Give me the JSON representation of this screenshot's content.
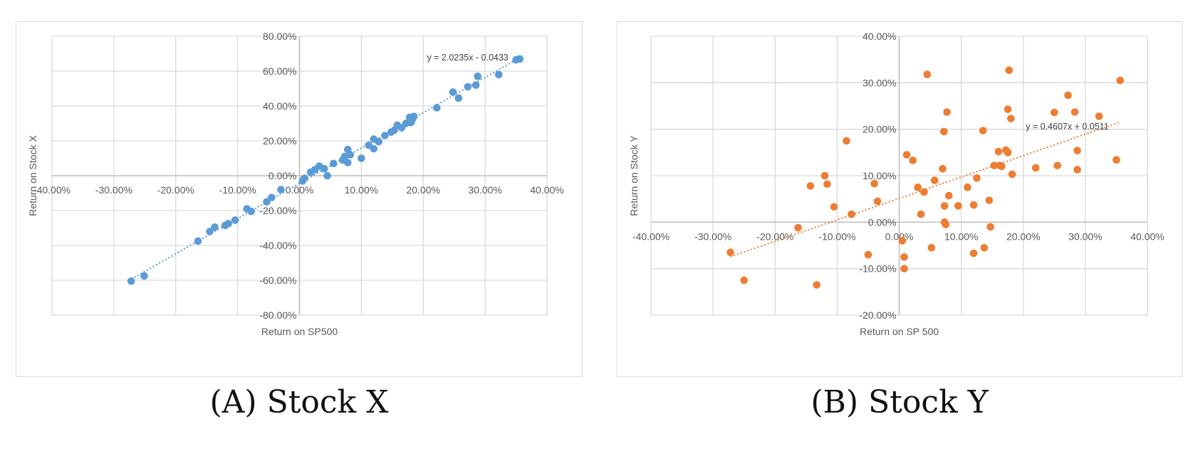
{
  "captions": {
    "a": "(A) Stock X",
    "b": "(B) Stock Y"
  },
  "chart_data": [
    {
      "type": "scatter",
      "color": "#5b9bd5",
      "xlabel": "Return on SP500",
      "ylabel": "Return on Stock X",
      "xlim": [
        -0.4,
        0.4
      ],
      "ylim": [
        -0.8,
        0.8
      ],
      "x_ticks": [
        -0.4,
        -0.3,
        -0.2,
        -0.1,
        0.0,
        0.1,
        0.2,
        0.3,
        0.4
      ],
      "y_ticks": [
        -0.8,
        -0.6,
        -0.4,
        -0.2,
        0.0,
        0.2,
        0.4,
        0.6,
        0.8
      ],
      "x_tick_labels": [
        "-40.00%",
        "-30.00%",
        "-20.00%",
        "-10.00%",
        "0.00%",
        "10.00%",
        "20.00%",
        "30.00%",
        "40.00%"
      ],
      "y_tick_labels": [
        "-80.00%",
        "-60.00%",
        "-40.00%",
        "-20.00%",
        "0.00%",
        "20.00%",
        "40.00%",
        "60.00%",
        "80.00%"
      ],
      "grid": true,
      "trendline": {
        "slope": 2.0235,
        "intercept": -0.0433,
        "x_range": [
          -0.272,
          0.356
        ],
        "equation": "y = 2.0235x - 0.0433"
      },
      "points": [
        [
          -0.272,
          -0.605
        ],
        [
          -0.251,
          -0.575
        ],
        [
          -0.164,
          -0.375
        ],
        [
          -0.145,
          -0.32
        ],
        [
          -0.137,
          -0.295
        ],
        [
          -0.12,
          -0.285
        ],
        [
          -0.115,
          -0.275
        ],
        [
          -0.104,
          -0.255
        ],
        [
          -0.085,
          -0.19
        ],
        [
          -0.078,
          -0.205
        ],
        [
          -0.053,
          -0.15
        ],
        [
          -0.045,
          -0.125
        ],
        [
          -0.03,
          -0.08
        ],
        [
          0.005,
          -0.03
        ],
        [
          0.008,
          -0.015
        ],
        [
          0.018,
          0.02
        ],
        [
          0.025,
          0.035
        ],
        [
          0.032,
          0.055
        ],
        [
          0.04,
          0.04
        ],
        [
          0.045,
          0.0
        ],
        [
          0.055,
          0.07
        ],
        [
          0.07,
          0.09
        ],
        [
          0.073,
          0.11
        ],
        [
          0.078,
          0.075
        ],
        [
          0.078,
          0.15
        ],
        [
          0.082,
          0.12
        ],
        [
          0.1,
          0.1
        ],
        [
          0.112,
          0.175
        ],
        [
          0.12,
          0.21
        ],
        [
          0.12,
          0.155
        ],
        [
          0.128,
          0.195
        ],
        [
          0.138,
          0.23
        ],
        [
          0.148,
          0.25
        ],
        [
          0.153,
          0.26
        ],
        [
          0.158,
          0.29
        ],
        [
          0.165,
          0.275
        ],
        [
          0.172,
          0.3
        ],
        [
          0.178,
          0.335
        ],
        [
          0.18,
          0.305
        ],
        [
          0.182,
          0.32
        ],
        [
          0.185,
          0.34
        ],
        [
          0.222,
          0.39
        ],
        [
          0.248,
          0.48
        ],
        [
          0.257,
          0.445
        ],
        [
          0.272,
          0.51
        ],
        [
          0.285,
          0.52
        ],
        [
          0.288,
          0.57
        ],
        [
          0.322,
          0.58
        ],
        [
          0.35,
          0.665
        ],
        [
          0.356,
          0.67
        ]
      ]
    },
    {
      "type": "scatter",
      "color": "#ed7d31",
      "xlabel": "Return on SP 500",
      "ylabel": "Return on Stock Y",
      "xlim": [
        -0.4,
        0.4
      ],
      "ylim": [
        -0.2,
        0.4
      ],
      "x_ticks": [
        -0.4,
        -0.3,
        -0.2,
        -0.1,
        0.0,
        0.1,
        0.2,
        0.3,
        0.4
      ],
      "y_ticks": [
        -0.2,
        -0.1,
        0.0,
        0.1,
        0.2,
        0.3,
        0.4
      ],
      "x_tick_labels": [
        "-40.00%",
        "-30.00%",
        "-20.00%",
        "-10.00%",
        "0.00%",
        "10.00%",
        "20.00%",
        "30.00%",
        "40.00%"
      ],
      "y_tick_labels": [
        "-20.00%",
        "-10.00%",
        "0.00%",
        "10.00%",
        "20.00%",
        "30.00%",
        "40.00%"
      ],
      "grid": true,
      "trendline": {
        "slope": 0.4607,
        "intercept": 0.0511,
        "x_range": [
          -0.272,
          0.356
        ],
        "equation": "y = 0.4607x + 0.0511"
      },
      "points": [
        [
          -0.272,
          -0.065
        ],
        [
          -0.25,
          -0.125
        ],
        [
          -0.163,
          -0.012
        ],
        [
          -0.143,
          0.078
        ],
        [
          -0.133,
          -0.135
        ],
        [
          -0.12,
          0.1
        ],
        [
          -0.116,
          0.082
        ],
        [
          -0.105,
          0.033
        ],
        [
          -0.085,
          0.175
        ],
        [
          -0.077,
          0.017
        ],
        [
          -0.05,
          -0.07
        ],
        [
          -0.04,
          0.083
        ],
        [
          -0.035,
          0.045
        ],
        [
          0.005,
          -0.04
        ],
        [
          0.008,
          -0.1
        ],
        [
          0.008,
          -0.075
        ],
        [
          0.012,
          0.145
        ],
        [
          0.022,
          0.133
        ],
        [
          0.03,
          0.075
        ],
        [
          0.035,
          0.017
        ],
        [
          0.04,
          0.065
        ],
        [
          0.045,
          0.318
        ],
        [
          0.052,
          -0.055
        ],
        [
          0.057,
          0.09
        ],
        [
          0.07,
          0.115
        ],
        [
          0.072,
          0.195
        ],
        [
          0.073,
          0.035
        ],
        [
          0.073,
          0.0
        ],
        [
          0.075,
          -0.005
        ],
        [
          0.077,
          0.237
        ],
        [
          0.08,
          0.057
        ],
        [
          0.095,
          0.035
        ],
        [
          0.11,
          0.075
        ],
        [
          0.12,
          0.037
        ],
        [
          0.12,
          -0.067
        ],
        [
          0.125,
          0.095
        ],
        [
          0.135,
          0.197
        ],
        [
          0.137,
          -0.055
        ],
        [
          0.145,
          0.047
        ],
        [
          0.147,
          -0.01
        ],
        [
          0.153,
          0.122
        ],
        [
          0.16,
          0.152
        ],
        [
          0.162,
          0.122
        ],
        [
          0.165,
          0.12
        ],
        [
          0.172,
          0.155
        ],
        [
          0.175,
          0.15
        ],
        [
          0.175,
          0.243
        ],
        [
          0.177,
          0.327
        ],
        [
          0.18,
          0.223
        ],
        [
          0.182,
          0.103
        ],
        [
          0.22,
          0.117
        ],
        [
          0.25,
          0.236
        ],
        [
          0.255,
          0.122
        ],
        [
          0.272,
          0.273
        ],
        [
          0.283,
          0.237
        ],
        [
          0.287,
          0.154
        ],
        [
          0.287,
          0.113
        ],
        [
          0.322,
          0.228
        ],
        [
          0.35,
          0.134
        ],
        [
          0.356,
          0.305
        ]
      ]
    }
  ]
}
